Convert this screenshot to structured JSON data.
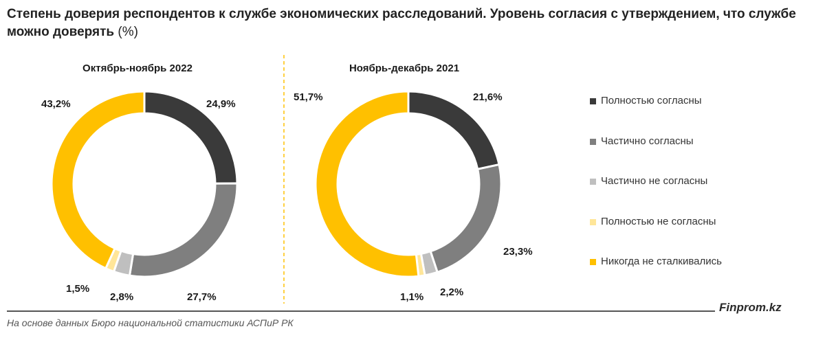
{
  "title": {
    "main": "Степень доверия респондентов к службе экономических расследований. Уровень согласия с утверждением, что службе можно доверять",
    "unit": "(%)"
  },
  "colors": {
    "fully_agree": "#3a3a3a",
    "partly_agree": "#7f7f7f",
    "partly_disagree": "#bfbfbf",
    "fully_disagree": "#ffe699",
    "never_encountered": "#ffc000"
  },
  "legend": [
    {
      "label": "Полностью согласны",
      "color": "#3a3a3a"
    },
    {
      "label": "Частично согласны",
      "color": "#7f7f7f"
    },
    {
      "label": "Частично не согласны",
      "color": "#bfbfbf"
    },
    {
      "label": "Полностью не согласны",
      "color": "#ffe699"
    },
    {
      "label": "Никогда не сталкивались",
      "color": "#ffc000"
    }
  ],
  "chart_data": [
    {
      "type": "pie",
      "donut": true,
      "title": "Октябрь-ноябрь 2022",
      "categories": [
        "Полностью согласны",
        "Частично согласны",
        "Частично не согласны",
        "Полностью не согласны",
        "Никогда не сталкивались"
      ],
      "values": [
        24.9,
        27.7,
        2.8,
        1.5,
        43.2
      ],
      "labels": [
        "24,9%",
        "27,7%",
        "2,8%",
        "1,5%",
        "43,2%"
      ],
      "colors": [
        "#3a3a3a",
        "#7f7f7f",
        "#bfbfbf",
        "#ffe699",
        "#ffc000"
      ]
    },
    {
      "type": "pie",
      "donut": true,
      "title": "Ноябрь-декабрь 2021",
      "categories": [
        "Полностью согласны",
        "Частично согласны",
        "Частично не согласны",
        "Полностью не согласны",
        "Никогда не сталкивались"
      ],
      "values": [
        21.6,
        23.3,
        2.2,
        1.1,
        51.7
      ],
      "labels": [
        "21,6%",
        "23,3%",
        "2,2%",
        "1,1%",
        "51,7%"
      ],
      "colors": [
        "#3a3a3a",
        "#7f7f7f",
        "#bfbfbf",
        "#ffe699",
        "#ffc000"
      ]
    }
  ],
  "brand": "Finprom.kz",
  "source": "На основе данных Бюро национальной статистики АСПиР РК"
}
